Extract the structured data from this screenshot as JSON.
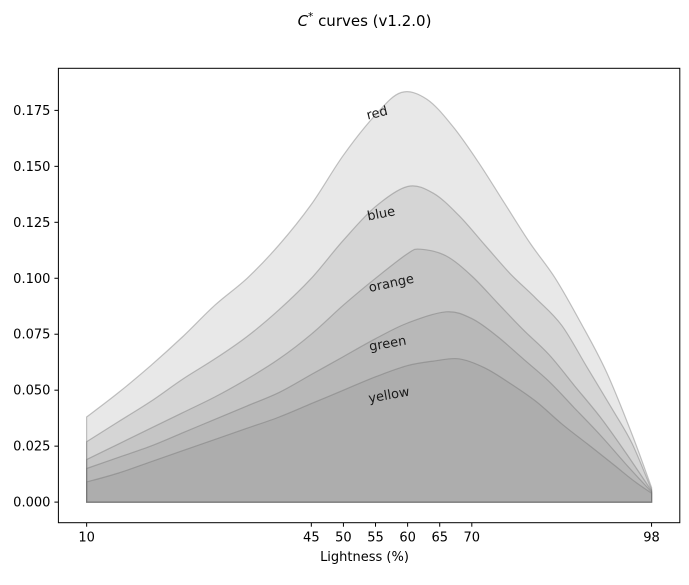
{
  "title": {
    "math": "C",
    "sup": "*",
    "rest": " curves (v1.2.0)"
  },
  "chart_data": {
    "type": "area",
    "title": "C* curves (v1.2.0)",
    "xlabel": "Lightness (%)",
    "ylabel": "",
    "xlim": [
      5.6,
      102.4
    ],
    "ylim": [
      -0.0092,
      0.1938
    ],
    "x_ticks": [
      10,
      45,
      50,
      55,
      60,
      65,
      70,
      98
    ],
    "y_ticks": [
      0,
      0.025,
      0.05,
      0.075,
      0.1,
      0.125,
      0.15,
      0.175
    ],
    "y_tick_labels": [
      "0.000",
      "0.025",
      "0.050",
      "0.075",
      "0.100",
      "0.125",
      "0.150",
      "0.175"
    ],
    "grid": false,
    "legend": "inline labels on curves",
    "baseline": 0,
    "style": {
      "fill_color": "#808080",
      "fill_alpha": 0.18,
      "edge_color": "rgba(110,110,110,0.4)",
      "spine_color": "#000000",
      "label_color": "#1a1a1a",
      "tick_label_color": "#000000"
    },
    "series": [
      {
        "name": "red",
        "label": {
          "text": "red",
          "x": 55.4,
          "y": 0.172,
          "rotation": -14
        },
        "peak": {
          "x": 59,
          "y": 0.183
        },
        "points": [
          [
            10,
            0.038
          ],
          [
            15,
            0.049
          ],
          [
            20,
            0.061
          ],
          [
            25,
            0.074
          ],
          [
            30,
            0.088
          ],
          [
            35,
            0.1
          ],
          [
            40,
            0.115
          ],
          [
            45,
            0.133
          ],
          [
            50,
            0.155
          ],
          [
            55,
            0.173
          ],
          [
            59,
            0.183
          ],
          [
            63,
            0.18
          ],
          [
            67,
            0.168
          ],
          [
            71,
            0.152
          ],
          [
            75,
            0.134
          ],
          [
            79,
            0.116
          ],
          [
            83,
            0.1
          ],
          [
            87,
            0.08
          ],
          [
            91,
            0.058
          ],
          [
            95,
            0.03
          ],
          [
            98,
            0.0065
          ]
        ]
      },
      {
        "name": "blue",
        "label": {
          "text": "blue",
          "x": 56.0,
          "y": 0.127,
          "rotation": -11
        },
        "peak": {
          "x": 60,
          "y": 0.141
        },
        "points": [
          [
            10,
            0.027
          ],
          [
            15,
            0.036
          ],
          [
            20,
            0.045
          ],
          [
            25,
            0.055
          ],
          [
            30,
            0.064
          ],
          [
            35,
            0.074
          ],
          [
            40,
            0.086
          ],
          [
            45,
            0.1
          ],
          [
            50,
            0.117
          ],
          [
            55,
            0.132
          ],
          [
            60,
            0.141
          ],
          [
            64,
            0.138
          ],
          [
            68,
            0.128
          ],
          [
            72,
            0.115
          ],
          [
            76,
            0.102
          ],
          [
            80,
            0.091
          ],
          [
            84,
            0.079
          ],
          [
            88,
            0.06
          ],
          [
            92,
            0.041
          ],
          [
            95,
            0.026
          ],
          [
            98,
            0.0055
          ]
        ]
      },
      {
        "name": "orange",
        "label": {
          "text": "orange",
          "x": 57.6,
          "y": 0.096,
          "rotation": -12
        },
        "peak": {
          "x": 62,
          "y": 0.113
        },
        "points": [
          [
            10,
            0.019
          ],
          [
            15,
            0.026
          ],
          [
            20,
            0.033
          ],
          [
            25,
            0.04
          ],
          [
            30,
            0.047
          ],
          [
            35,
            0.055
          ],
          [
            40,
            0.064
          ],
          [
            45,
            0.075
          ],
          [
            50,
            0.088
          ],
          [
            55,
            0.1
          ],
          [
            60,
            0.111
          ],
          [
            62,
            0.113
          ],
          [
            66,
            0.11
          ],
          [
            70,
            0.101
          ],
          [
            74,
            0.089
          ],
          [
            78,
            0.077
          ],
          [
            82,
            0.066
          ],
          [
            86,
            0.052
          ],
          [
            90,
            0.038
          ],
          [
            94,
            0.022
          ],
          [
            98,
            0.005
          ]
        ]
      },
      {
        "name": "green",
        "label": {
          "text": "green",
          "x": 57.0,
          "y": 0.069,
          "rotation": -10
        },
        "peak": {
          "x": 66,
          "y": 0.085
        },
        "points": [
          [
            10,
            0.015
          ],
          [
            15,
            0.02
          ],
          [
            20,
            0.025
          ],
          [
            25,
            0.031
          ],
          [
            30,
            0.037
          ],
          [
            35,
            0.043
          ],
          [
            40,
            0.049
          ],
          [
            45,
            0.057
          ],
          [
            50,
            0.065
          ],
          [
            55,
            0.073
          ],
          [
            60,
            0.08
          ],
          [
            66,
            0.085
          ],
          [
            70,
            0.082
          ],
          [
            74,
            0.074
          ],
          [
            78,
            0.064
          ],
          [
            82,
            0.054
          ],
          [
            86,
            0.042
          ],
          [
            90,
            0.03
          ],
          [
            94,
            0.017
          ],
          [
            98,
            0.0045
          ]
        ]
      },
      {
        "name": "yellow",
        "label": {
          "text": "yellow",
          "x": 57.2,
          "y": 0.046,
          "rotation": -10
        },
        "peak": {
          "x": 68,
          "y": 0.064
        },
        "points": [
          [
            10,
            0.009
          ],
          [
            15,
            0.013
          ],
          [
            20,
            0.018
          ],
          [
            25,
            0.023
          ],
          [
            30,
            0.028
          ],
          [
            35,
            0.033
          ],
          [
            40,
            0.038
          ],
          [
            45,
            0.044
          ],
          [
            50,
            0.05
          ],
          [
            55,
            0.056
          ],
          [
            60,
            0.061
          ],
          [
            64,
            0.063
          ],
          [
            68,
            0.064
          ],
          [
            72,
            0.06
          ],
          [
            76,
            0.053
          ],
          [
            80,
            0.045
          ],
          [
            84,
            0.035
          ],
          [
            88,
            0.026
          ],
          [
            92,
            0.017
          ],
          [
            95,
            0.01
          ],
          [
            98,
            0.004
          ]
        ]
      }
    ]
  }
}
